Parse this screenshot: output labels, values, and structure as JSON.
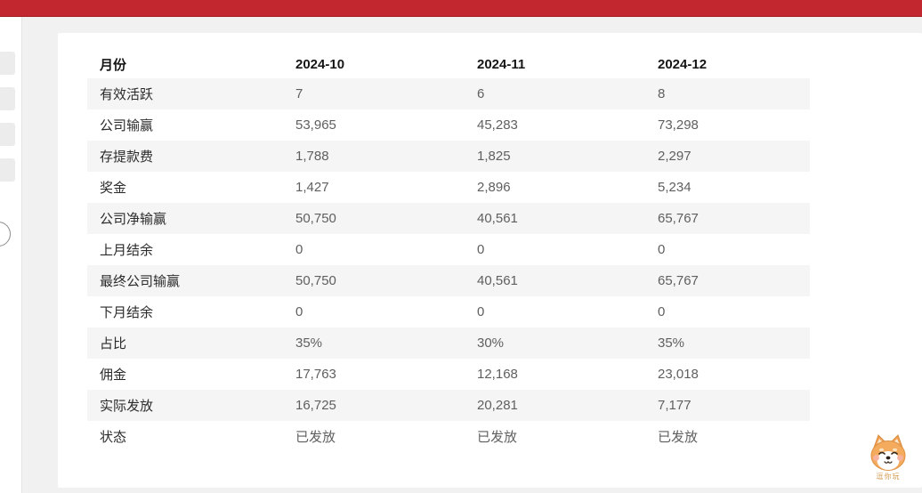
{
  "colors": {
    "topbar_red": "#c2262e",
    "page_background": "#f1f1f1",
    "row_stripe": "#f5f5f5",
    "label_text": "#2b2b2b",
    "value_text": "#5f5f5f",
    "mascot_text": "#d49a4c"
  },
  "sidebar": {
    "skeleton_count": 4,
    "skeleton_tops": [
      39,
      79,
      119,
      159
    ]
  },
  "report": {
    "columns": [
      "月份",
      "2024-10",
      "2024-11",
      "2024-12"
    ],
    "rows": [
      {
        "label": "有效活跃",
        "values": [
          "7",
          "6",
          "8"
        ]
      },
      {
        "label": "公司输赢",
        "values": [
          "53,965",
          "45,283",
          "73,298"
        ]
      },
      {
        "label": "存提款费",
        "values": [
          "1,788",
          "1,825",
          "2,297"
        ]
      },
      {
        "label": "奖金",
        "values": [
          "1,427",
          "2,896",
          "5,234"
        ]
      },
      {
        "label": "公司净输赢",
        "values": [
          "50,750",
          "40,561",
          "65,767"
        ]
      },
      {
        "label": "上月结余",
        "values": [
          "0",
          "0",
          "0"
        ]
      },
      {
        "label": "最终公司输赢",
        "values": [
          "50,750",
          "40,561",
          "65,767"
        ]
      },
      {
        "label": "下月结余",
        "values": [
          "0",
          "0",
          "0"
        ]
      },
      {
        "label": "占比",
        "values": [
          "35%",
          "30%",
          "35%"
        ]
      },
      {
        "label": "佣金",
        "values": [
          "17,763",
          "12,168",
          "23,018"
        ]
      },
      {
        "label": "实际发放",
        "values": [
          "16,725",
          "20,281",
          "7,177"
        ]
      },
      {
        "label": "状态",
        "values": [
          "已发放",
          "已发放",
          "已发放"
        ]
      }
    ]
  },
  "mascot": {
    "label": "逗你玩"
  }
}
